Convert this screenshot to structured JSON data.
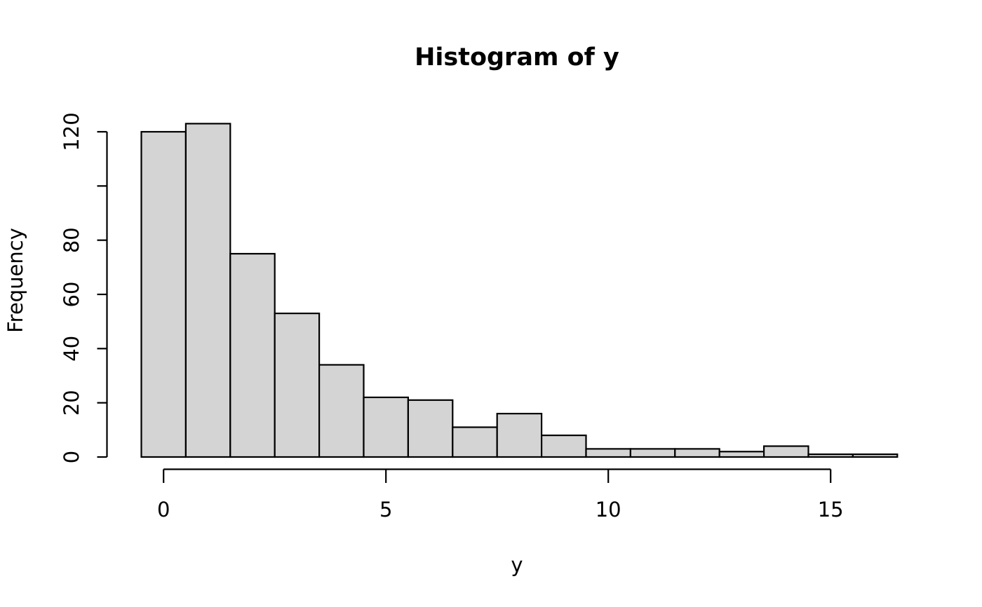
{
  "chart_data": {
    "type": "bar",
    "chart_kind": "histogram",
    "title": "Histogram of y",
    "xlabel": "y",
    "ylabel": "Frequency",
    "breaks": [
      -0.5,
      0.5,
      1.5,
      2.5,
      3.5,
      4.5,
      5.5,
      6.5,
      7.5,
      8.5,
      9.5,
      10.5,
      11.5,
      12.5,
      13.5,
      14.5,
      15.5,
      16.5
    ],
    "bin_centers": [
      0,
      1,
      2,
      3,
      4,
      5,
      6,
      7,
      8,
      9,
      10,
      11,
      12,
      13,
      14,
      15,
      16
    ],
    "counts": [
      120,
      123,
      75,
      53,
      34,
      22,
      21,
      11,
      16,
      8,
      3,
      3,
      3,
      2,
      4,
      1,
      1
    ],
    "x_ticks": [
      {
        "value": 0,
        "label": "0"
      },
      {
        "value": 5,
        "label": "5"
      },
      {
        "value": 10,
        "label": "10"
      },
      {
        "value": 15,
        "label": "15"
      }
    ],
    "y_ticks": [
      {
        "value": 0,
        "label": "0"
      },
      {
        "value": 20,
        "label": "20"
      },
      {
        "value": 40,
        "label": "40"
      },
      {
        "value": 60,
        "label": "60"
      },
      {
        "value": 80,
        "label": "80"
      },
      {
        "value": 100,
        "label": ""
      },
      {
        "value": 120,
        "label": "120"
      }
    ],
    "xlim": [
      -0.5,
      16.5
    ],
    "ylim": [
      0,
      120
    ],
    "grid": false,
    "legend_position": "none",
    "bar_fill": "#d4d4d4",
    "bar_stroke": "#000000",
    "axis_color": "#000000",
    "background": "#ffffff"
  }
}
